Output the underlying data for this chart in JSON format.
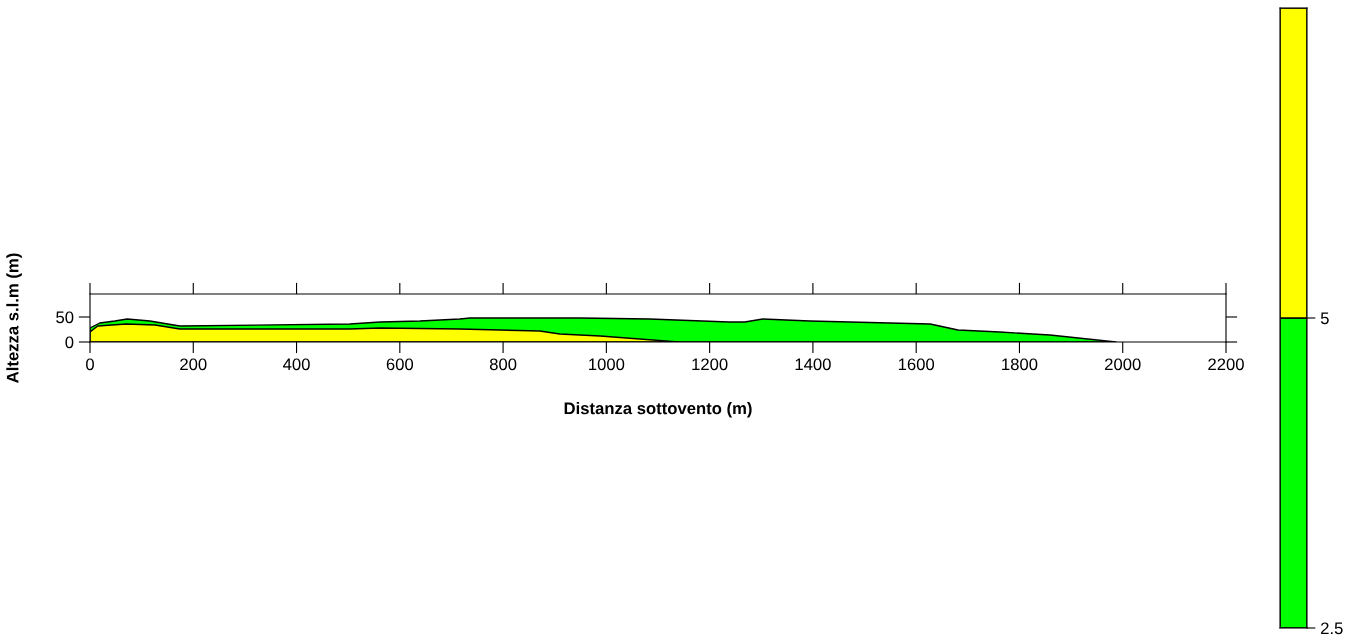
{
  "chart_data": {
    "type": "area",
    "xlabel": "Distanza sottovento (m)",
    "ylabel": "Altezza s.l.m (m)",
    "xlim": [
      0,
      2200
    ],
    "xticks": [
      0,
      200,
      400,
      600,
      800,
      1000,
      1200,
      1400,
      1600,
      1800,
      2000,
      2200
    ],
    "ylim": [
      0,
      96
    ],
    "yticks": [
      0,
      50
    ],
    "grid": false,
    "legend": false,
    "clim": [
      2.5,
      7.5
    ],
    "cticks": [
      2.5,
      5
    ],
    "series": [
      {
        "color": "#00ff00",
        "x": [
          0,
          19,
          48,
          72,
          116,
          174,
          503,
          562,
          639,
          716,
          736,
          833,
          949,
          1084,
          1237,
          1268,
          1303,
          1394,
          1627,
          1681,
          1762,
          1859,
          1987
        ],
        "values": [
          28,
          38,
          42,
          46,
          42,
          32,
          36,
          40,
          42,
          46,
          48,
          48,
          48,
          46,
          40,
          40,
          46,
          42,
          36,
          24,
          20,
          14,
          0
        ]
      },
      {
        "color": "#ffff00",
        "x": [
          0,
          15,
          70,
          126,
          174,
          503,
          562,
          716,
          871,
          910,
          988,
          1140
        ],
        "values": [
          20,
          32,
          36,
          34,
          26,
          26,
          28,
          26,
          22,
          16,
          12,
          0
        ]
      }
    ]
  }
}
